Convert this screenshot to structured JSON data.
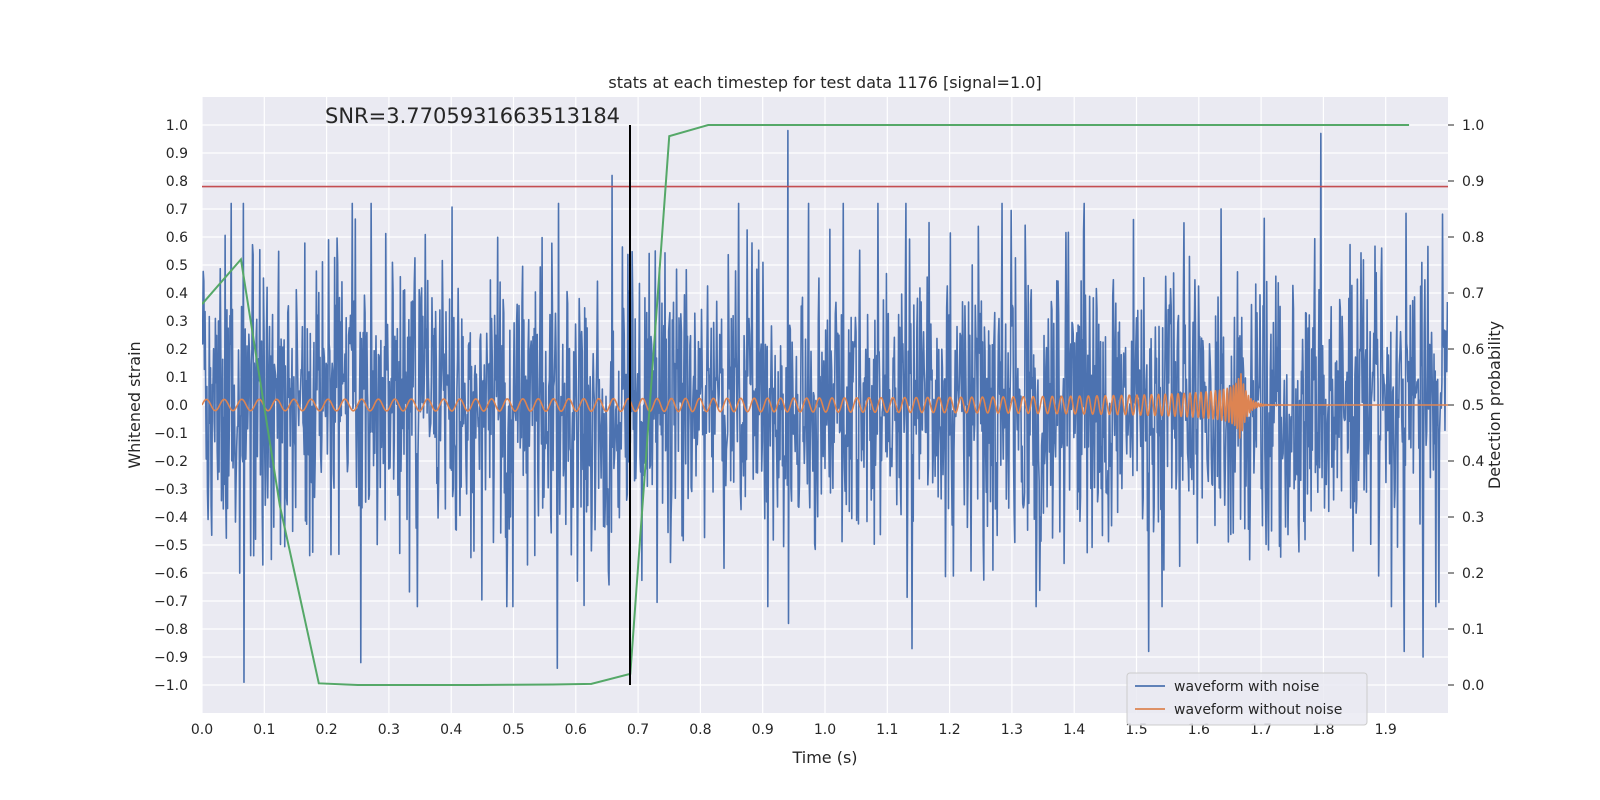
{
  "chart_data": {
    "type": "line",
    "title": "stats at each timestep for test data 1176 [signal=1.0]",
    "xlabel": "Time (s)",
    "ylabel": "Whitened strain",
    "y2label": "Detection probability",
    "xlim": [
      0.0,
      2.0
    ],
    "ylim": [
      -1.1,
      1.1
    ],
    "y2lim": [
      -0.05,
      1.05
    ],
    "x_ticks": [
      "0.0",
      "0.1",
      "0.2",
      "0.3",
      "0.4",
      "0.5",
      "0.6",
      "0.7",
      "0.8",
      "0.9",
      "1.0",
      "1.1",
      "1.2",
      "1.3",
      "1.4",
      "1.5",
      "1.6",
      "1.7",
      "1.8",
      "1.9"
    ],
    "y_ticks": [
      "1.0",
      "0.9",
      "0.8",
      "0.7",
      "0.6",
      "0.5",
      "0.4",
      "0.3",
      "0.2",
      "0.1",
      "0.0",
      "−0.1",
      "−0.2",
      "−0.3",
      "−0.4",
      "−0.5",
      "−0.6",
      "−0.7",
      "−0.8",
      "−0.9",
      "−1.0"
    ],
    "y2_ticks": [
      "1.0",
      "0.9",
      "0.8",
      "0.7",
      "0.6",
      "0.5",
      "0.4",
      "0.3",
      "0.2",
      "0.1",
      "0.0"
    ],
    "annotation": "SNR=3.7705931663513184",
    "threshold_line": {
      "y": 0.78,
      "color": "#c44e52"
    },
    "event_marker": {
      "x": 0.687,
      "y_from": -1.0,
      "y_to": 1.0,
      "color": "#000000"
    },
    "noise_series": {
      "name": "waveform with noise",
      "color": "#4c72b0",
      "t_start": 0.0,
      "t_end": 2.0,
      "n_samples": 2048,
      "std": 0.27,
      "seed": 1176,
      "spikes": [
        {
          "x": 0.066,
          "y": 0.72
        },
        {
          "x": 0.067,
          "y": -0.99
        },
        {
          "x": 0.658,
          "y": 0.82
        },
        {
          "x": 0.94,
          "y": 0.98
        },
        {
          "x": 0.941,
          "y": -0.78
        },
        {
          "x": 1.796,
          "y": 0.97
        },
        {
          "x": 1.14,
          "y": -0.87
        },
        {
          "x": 1.52,
          "y": -0.88
        },
        {
          "x": 1.96,
          "y": -0.9
        },
        {
          "x": 1.93,
          "y": -0.88
        },
        {
          "x": 0.255,
          "y": -0.92
        },
        {
          "x": 0.57,
          "y": -0.94
        }
      ]
    },
    "clean_series": {
      "name": "waveform without noise",
      "color": "#dd8452",
      "t_start": 0.0,
      "t_merge": 1.667,
      "t_end": 2.0,
      "amp_start": 0.02,
      "amp_peak": 0.12,
      "freq_start": 35,
      "freq_end": 250,
      "ringdown_s": 0.01
    },
    "probability_series": {
      "name": "detection probability",
      "color": "#55a868",
      "x": [
        0.0,
        0.0625,
        0.125,
        0.1875,
        0.25,
        0.3125,
        0.375,
        0.4375,
        0.5,
        0.5625,
        0.625,
        0.6875,
        0.75,
        0.8125,
        0.875,
        0.9375,
        1.0,
        1.0625,
        1.125,
        1.1875,
        1.25,
        1.3125,
        1.375,
        1.4375,
        1.5,
        1.5625,
        1.625,
        1.6875,
        1.75,
        1.8125,
        1.875,
        1.9375
      ],
      "y": [
        0.68,
        0.76,
        0.32,
        0.003,
        0.0,
        0.0,
        0.0,
        0.0,
        0.0005,
        0.001,
        0.002,
        0.02,
        0.98,
        1.0,
        1.0,
        1.0,
        1.0,
        1.0,
        1.0,
        1.0,
        1.0,
        1.0,
        1.0,
        1.0,
        1.0,
        1.0,
        1.0,
        1.0,
        1.0,
        1.0,
        1.0,
        1.0
      ]
    },
    "legend": {
      "position": "lower-right",
      "entries": [
        {
          "label": "waveform with noise",
          "color": "#4c72b0"
        },
        {
          "label": "waveform without noise",
          "color": "#dd8452"
        }
      ]
    },
    "grid": true
  }
}
